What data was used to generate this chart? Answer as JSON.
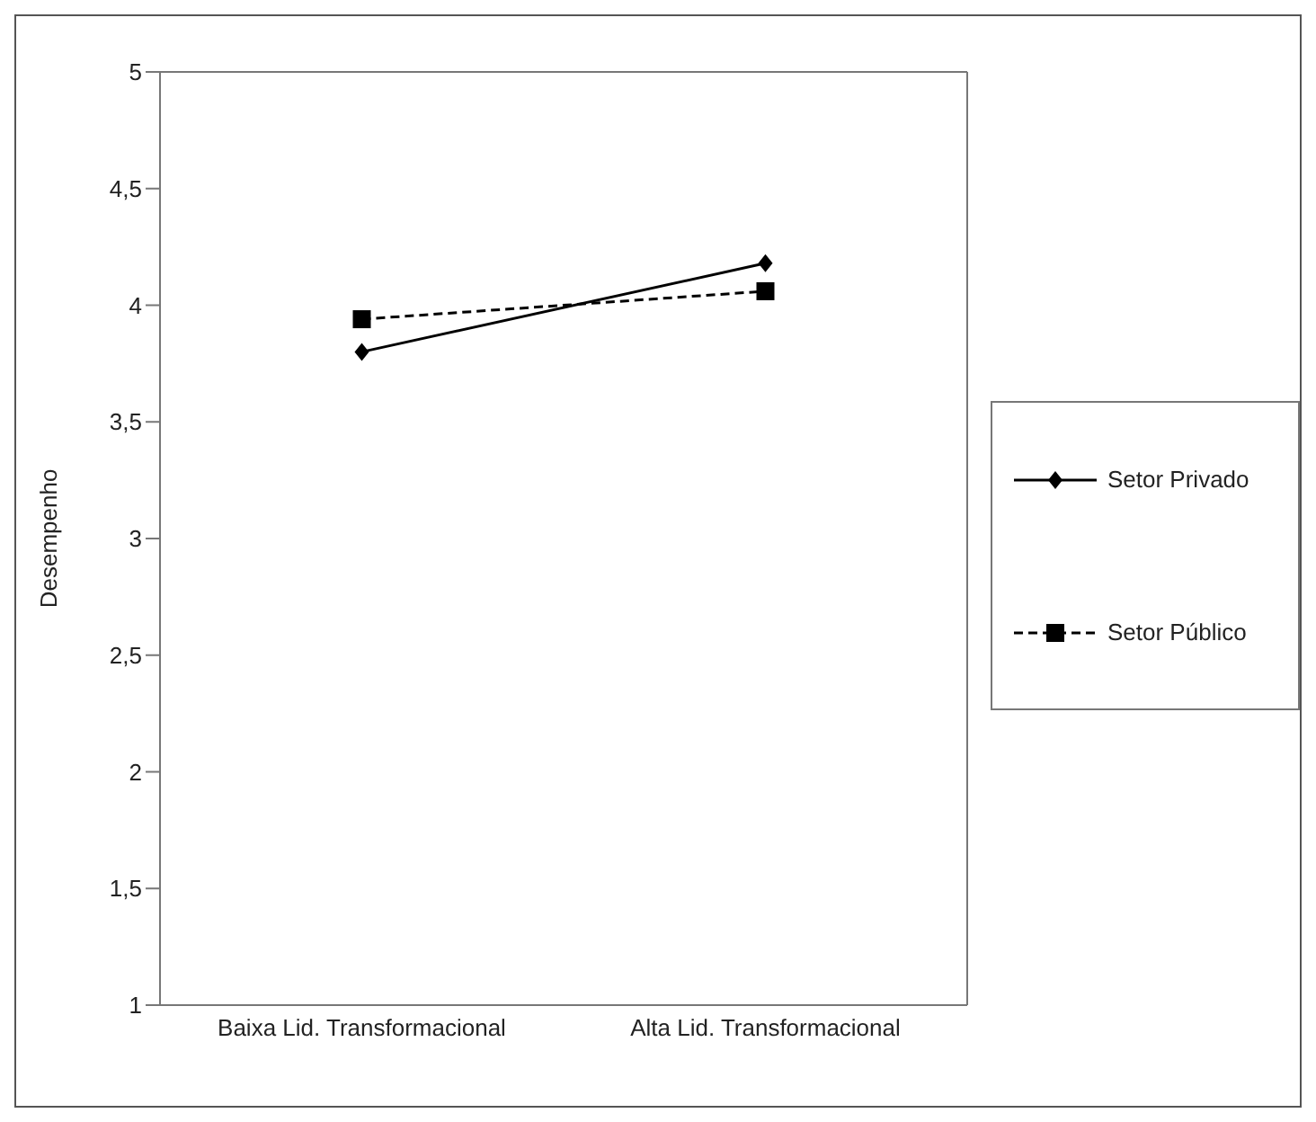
{
  "chart_data": {
    "type": "line",
    "ylabel": "Desempenho",
    "categories": [
      "Baixa Lid. Transformacional",
      "Alta Lid. Transformacional"
    ],
    "series": [
      {
        "name": "Setor Privado",
        "color": "#000000",
        "values": [
          3.8,
          4.18
        ],
        "marker": "diamond",
        "line_style": "solid"
      },
      {
        "name": "Setor Público",
        "color": "#000000",
        "values": [
          3.94,
          4.06
        ],
        "marker": "square",
        "line_style": "dashed"
      }
    ],
    "ylim": [
      1,
      5
    ],
    "yticks": [
      1,
      {
        "value": 1.5,
        "label": "1,5"
      },
      2,
      {
        "value": 2.5,
        "label": "2,5"
      },
      3,
      {
        "value": 3.5,
        "label": "3,5"
      },
      4,
      {
        "value": 4.5,
        "label": "4,5"
      },
      5
    ],
    "grid": false,
    "legend": "right"
  }
}
